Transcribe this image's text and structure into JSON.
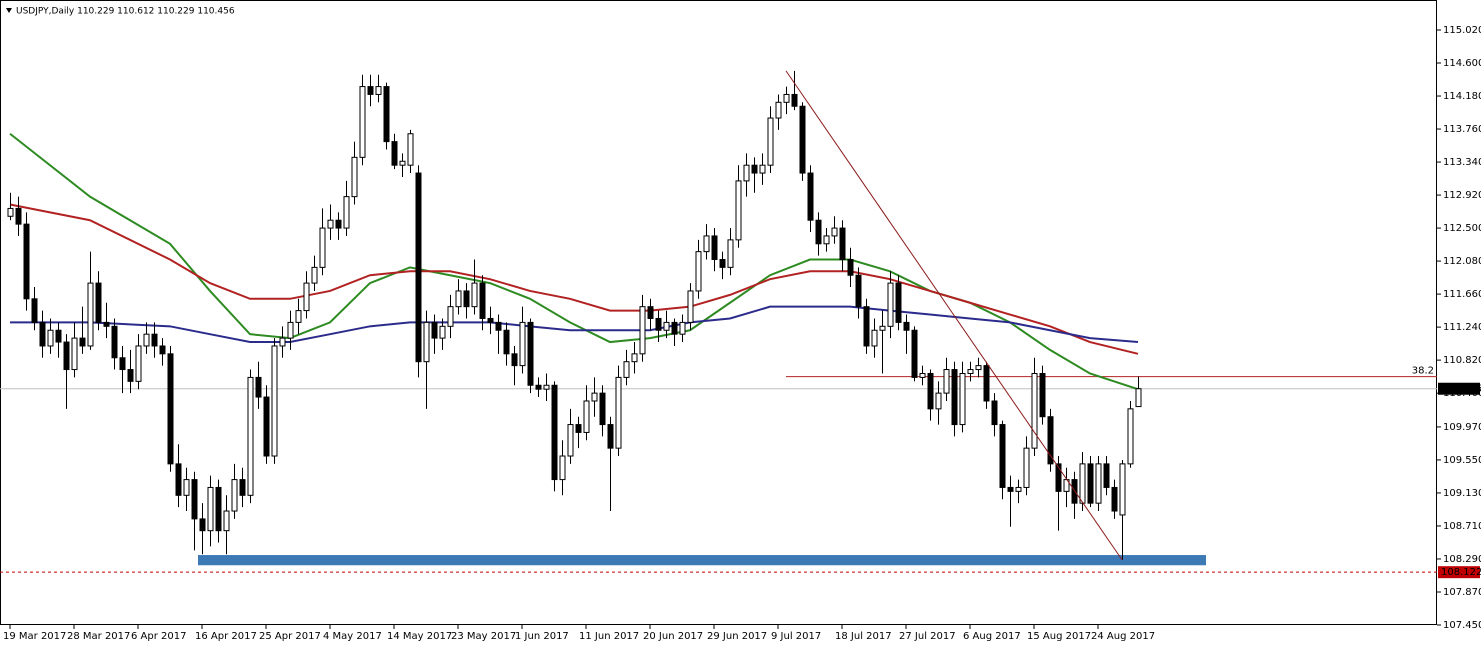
{
  "chart_data": {
    "type": "candlestick",
    "title": "USDJPY,Daily  110.229 110.612 110.229 110.456",
    "categories": [
      "19 Mar 2017",
      null,
      null,
      null,
      null,
      null,
      null,
      null,
      "28 Mar 2017",
      null,
      null,
      null,
      null,
      null,
      null,
      null,
      "6 Apr 2017",
      null,
      null,
      null,
      null,
      null,
      null,
      null,
      "16 Apr 2017",
      null,
      null,
      null,
      null,
      null,
      null,
      null,
      "25 Apr 2017",
      null,
      null,
      null,
      null,
      null,
      null,
      null,
      "4 May 2017",
      null,
      null,
      null,
      null,
      null,
      null,
      null,
      "14 May 2017",
      null,
      null,
      null,
      null,
      null,
      null,
      null,
      "23 May 2017",
      null,
      null,
      null,
      null,
      null,
      null,
      null,
      "1 Jun 2017",
      null,
      null,
      null,
      null,
      null,
      null,
      null,
      "11 Jun 2017",
      null,
      null,
      null,
      null,
      null,
      null,
      null,
      "20 Jun 2017",
      null,
      null,
      null,
      null,
      null,
      null,
      null,
      "29 Jun 2017",
      null,
      null,
      null,
      null,
      null,
      null,
      null,
      "9 Jul 2017",
      null,
      null,
      null,
      null,
      null,
      null,
      null,
      "18 Jul 2017",
      null,
      null,
      null,
      null,
      null,
      null,
      null,
      "27 Jul 2017",
      null,
      null,
      null,
      null,
      null,
      null,
      null,
      "6 Aug 2017",
      null,
      null,
      null,
      null,
      null,
      null,
      null,
      "15 Aug 2017",
      null,
      null,
      null,
      null,
      null,
      null,
      null,
      "24 Aug 2017",
      null,
      null,
      null,
      null,
      null
    ],
    "ohlc": [
      [
        112.65,
        112.95,
        112.6,
        112.75
      ],
      [
        112.75,
        112.9,
        112.4,
        112.55
      ],
      [
        112.55,
        112.7,
        111.45,
        111.6
      ],
      [
        111.6,
        111.75,
        111.2,
        111.3
      ],
      [
        111.3,
        111.45,
        110.85,
        111.0
      ],
      [
        111.0,
        111.35,
        110.9,
        111.2
      ],
      [
        111.2,
        111.3,
        110.85,
        111.05
      ],
      [
        111.05,
        111.15,
        110.2,
        110.7
      ],
      [
        110.7,
        111.3,
        110.6,
        111.1
      ],
      [
        111.1,
        111.5,
        110.9,
        111.0
      ],
      [
        111.0,
        112.2,
        110.95,
        111.8
      ],
      [
        111.8,
        111.95,
        111.2,
        111.3
      ],
      [
        111.3,
        111.55,
        111.1,
        111.25
      ],
      [
        111.25,
        111.35,
        110.7,
        110.85
      ],
      [
        110.85,
        111.0,
        110.4,
        110.7
      ],
      [
        110.7,
        110.95,
        110.4,
        110.55
      ],
      [
        110.55,
        111.15,
        110.45,
        111.0
      ],
      [
        111.0,
        111.3,
        110.9,
        111.15
      ],
      [
        111.15,
        111.3,
        110.85,
        111.0
      ],
      [
        111.0,
        111.1,
        110.75,
        110.9
      ],
      [
        110.9,
        111.0,
        109.4,
        109.5
      ],
      [
        109.5,
        109.75,
        108.95,
        109.1
      ],
      [
        109.1,
        109.45,
        108.9,
        109.3
      ],
      [
        109.3,
        109.4,
        108.4,
        108.8
      ],
      [
        108.8,
        109.0,
        108.35,
        108.65
      ],
      [
        108.65,
        109.35,
        108.45,
        109.2
      ],
      [
        109.2,
        109.3,
        108.5,
        108.65
      ],
      [
        108.65,
        109.1,
        108.35,
        108.9
      ],
      [
        108.9,
        109.5,
        108.8,
        109.3
      ],
      [
        109.3,
        109.45,
        108.95,
        109.1
      ],
      [
        109.1,
        110.7,
        109.0,
        110.6
      ],
      [
        110.6,
        110.8,
        110.2,
        110.35
      ],
      [
        110.35,
        110.5,
        109.5,
        109.6
      ],
      [
        109.6,
        111.1,
        109.5,
        111.0
      ],
      [
        111.0,
        111.25,
        110.85,
        111.1
      ],
      [
        111.1,
        111.45,
        110.95,
        111.3
      ],
      [
        111.3,
        111.6,
        111.15,
        111.45
      ],
      [
        111.45,
        111.95,
        111.35,
        111.8
      ],
      [
        111.8,
        112.15,
        111.7,
        112.0
      ],
      [
        112.0,
        112.75,
        111.9,
        112.5
      ],
      [
        112.5,
        112.8,
        112.35,
        112.6
      ],
      [
        112.6,
        112.7,
        112.35,
        112.5
      ],
      [
        112.5,
        113.1,
        112.4,
        112.9
      ],
      [
        112.9,
        113.6,
        112.8,
        113.4
      ],
      [
        113.4,
        114.45,
        113.3,
        114.3
      ],
      [
        114.3,
        114.45,
        114.05,
        114.2
      ],
      [
        114.2,
        114.45,
        114.1,
        114.3
      ],
      [
        114.3,
        114.35,
        113.5,
        113.6
      ],
      [
        113.6,
        113.7,
        113.25,
        113.3
      ],
      [
        113.3,
        113.45,
        113.15,
        113.35
      ],
      [
        113.3,
        113.75,
        113.2,
        113.7
      ],
      [
        113.2,
        113.3,
        110.6,
        110.8
      ],
      [
        110.8,
        111.45,
        110.2,
        111.3
      ],
      [
        111.3,
        111.4,
        110.9,
        111.1
      ],
      [
        111.1,
        111.35,
        110.95,
        111.25
      ],
      [
        111.25,
        111.65,
        111.1,
        111.5
      ],
      [
        111.5,
        111.85,
        111.4,
        111.7
      ],
      [
        111.7,
        111.8,
        111.35,
        111.5
      ],
      [
        111.5,
        112.1,
        111.4,
        111.8
      ],
      [
        111.8,
        111.9,
        111.2,
        111.35
      ],
      [
        111.35,
        111.5,
        111.15,
        111.3
      ],
      [
        111.3,
        111.4,
        110.9,
        111.2
      ],
      [
        111.2,
        111.3,
        110.75,
        110.9
      ],
      [
        110.9,
        111.0,
        110.5,
        110.75
      ],
      [
        110.75,
        111.5,
        110.65,
        111.3
      ],
      [
        111.3,
        111.35,
        110.4,
        110.5
      ],
      [
        110.5,
        110.6,
        110.35,
        110.45
      ],
      [
        110.45,
        110.65,
        110.3,
        110.5
      ],
      [
        110.5,
        110.55,
        109.15,
        109.3
      ],
      [
        109.3,
        109.8,
        109.1,
        109.6
      ],
      [
        109.6,
        110.2,
        109.5,
        110.0
      ],
      [
        110.0,
        110.1,
        109.7,
        109.9
      ],
      [
        109.9,
        110.5,
        109.8,
        110.3
      ],
      [
        110.3,
        110.6,
        110.1,
        110.4
      ],
      [
        110.4,
        110.5,
        109.85,
        110.0
      ],
      [
        110.0,
        110.1,
        108.9,
        109.7
      ],
      [
        109.7,
        110.75,
        109.6,
        110.6
      ],
      [
        110.6,
        110.95,
        110.5,
        110.8
      ],
      [
        110.8,
        111.05,
        110.65,
        110.9
      ],
      [
        110.9,
        111.65,
        110.8,
        111.5
      ],
      [
        111.5,
        111.6,
        111.2,
        111.35
      ],
      [
        111.35,
        111.45,
        111.05,
        111.2
      ],
      [
        111.2,
        111.45,
        111.1,
        111.3
      ],
      [
        111.3,
        111.35,
        111.0,
        111.15
      ],
      [
        111.15,
        111.4,
        111.05,
        111.3
      ],
      [
        111.3,
        111.8,
        111.2,
        111.7
      ],
      [
        111.7,
        112.35,
        111.6,
        112.2
      ],
      [
        112.2,
        112.55,
        112.1,
        112.4
      ],
      [
        112.4,
        112.5,
        111.95,
        112.1
      ],
      [
        112.1,
        112.2,
        111.85,
        112.0
      ],
      [
        112.0,
        112.5,
        111.9,
        112.35
      ],
      [
        112.35,
        113.3,
        112.25,
        113.1
      ],
      [
        113.1,
        113.45,
        112.9,
        113.3
      ],
      [
        113.3,
        113.4,
        112.95,
        113.2
      ],
      [
        113.2,
        113.45,
        113.05,
        113.3
      ],
      [
        113.3,
        114.05,
        113.2,
        113.9
      ],
      [
        113.9,
        114.2,
        113.75,
        114.1
      ],
      [
        114.1,
        114.3,
        113.95,
        114.2
      ],
      [
        114.2,
        114.5,
        114.0,
        114.05
      ],
      [
        114.05,
        114.1,
        113.1,
        113.2
      ],
      [
        113.2,
        113.3,
        112.45,
        112.6
      ],
      [
        112.6,
        112.7,
        112.15,
        112.3
      ],
      [
        112.3,
        112.5,
        112.2,
        112.4
      ],
      [
        112.4,
        112.65,
        112.3,
        112.5
      ],
      [
        112.5,
        112.6,
        111.95,
        112.1
      ],
      [
        112.1,
        112.25,
        111.75,
        111.9
      ],
      [
        111.9,
        112.0,
        111.35,
        111.5
      ],
      [
        111.5,
        111.6,
        110.9,
        111.0
      ],
      [
        111.0,
        111.35,
        110.85,
        111.2
      ],
      [
        111.2,
        111.45,
        110.65,
        111.25
      ],
      [
        111.25,
        111.95,
        111.1,
        111.8
      ],
      [
        111.8,
        111.9,
        111.2,
        111.3
      ],
      [
        111.3,
        111.4,
        110.9,
        111.2
      ],
      [
        111.2,
        111.25,
        110.55,
        110.6
      ],
      [
        110.6,
        110.75,
        110.5,
        110.65
      ],
      [
        110.65,
        110.7,
        110.05,
        110.2
      ],
      [
        110.2,
        110.55,
        110.0,
        110.4
      ],
      [
        110.4,
        110.85,
        110.3,
        110.7
      ],
      [
        110.7,
        110.8,
        109.85,
        110.0
      ],
      [
        110.0,
        110.8,
        109.9,
        110.65
      ],
      [
        110.65,
        110.8,
        110.55,
        110.7
      ],
      [
        110.7,
        110.85,
        110.6,
        110.75
      ],
      [
        110.75,
        110.8,
        110.2,
        110.3
      ],
      [
        110.3,
        110.4,
        109.85,
        110.0
      ],
      [
        110.0,
        110.05,
        109.05,
        109.2
      ],
      [
        109.2,
        109.35,
        108.7,
        109.15
      ],
      [
        109.15,
        109.3,
        109.0,
        109.2
      ],
      [
        109.2,
        109.85,
        109.1,
        109.7
      ],
      [
        109.7,
        110.85,
        109.6,
        110.65
      ],
      [
        110.65,
        110.75,
        110.0,
        110.1
      ],
      [
        110.1,
        110.2,
        109.4,
        109.5
      ],
      [
        109.5,
        109.6,
        108.65,
        109.15
      ],
      [
        109.15,
        109.45,
        108.95,
        109.3
      ],
      [
        109.3,
        109.4,
        108.8,
        109.0
      ],
      [
        109.0,
        109.65,
        108.9,
        109.5
      ],
      [
        109.5,
        109.6,
        108.95,
        109.0
      ],
      [
        109.0,
        109.6,
        108.9,
        109.5
      ],
      [
        109.5,
        109.6,
        109.1,
        109.2
      ],
      [
        109.2,
        109.3,
        108.8,
        108.9
      ],
      [
        108.85,
        109.55,
        108.28,
        109.5
      ],
      [
        109.5,
        110.3,
        109.45,
        110.2
      ],
      [
        110.229,
        110.612,
        110.229,
        110.456
      ]
    ],
    "overlays": [
      {
        "color": "#2e8b22",
        "x": [
          0,
          10,
          20,
          25,
          30,
          35,
          40,
          45,
          50,
          55,
          60,
          65,
          70,
          75,
          80,
          85,
          90,
          95,
          100,
          105,
          110,
          115,
          120,
          125,
          130,
          135,
          141
        ],
        "values": [
          113.7,
          112.9,
          112.3,
          111.7,
          111.15,
          111.1,
          111.3,
          111.8,
          112.0,
          111.9,
          111.8,
          111.6,
          111.3,
          111.05,
          111.1,
          111.2,
          111.55,
          111.9,
          112.1,
          112.1,
          111.95,
          111.7,
          111.55,
          111.3,
          110.95,
          110.65,
          110.45
        ]
      },
      {
        "color": "#b22222",
        "x": [
          0,
          10,
          20,
          25,
          30,
          35,
          40,
          45,
          50,
          55,
          60,
          65,
          70,
          75,
          80,
          85,
          90,
          95,
          100,
          105,
          110,
          115,
          120,
          125,
          130,
          135,
          141
        ],
        "values": [
          112.8,
          112.6,
          112.1,
          111.8,
          111.6,
          111.6,
          111.7,
          111.9,
          111.95,
          111.95,
          111.85,
          111.7,
          111.6,
          111.45,
          111.45,
          111.5,
          111.65,
          111.85,
          111.95,
          111.95,
          111.85,
          111.7,
          111.55,
          111.4,
          111.25,
          111.05,
          110.9
        ]
      },
      {
        "color": "#2b2b8c",
        "x": [
          0,
          10,
          20,
          25,
          30,
          35,
          40,
          45,
          50,
          55,
          60,
          65,
          70,
          75,
          80,
          85,
          90,
          95,
          100,
          105,
          110,
          115,
          120,
          125,
          130,
          135,
          141
        ],
        "values": [
          111.3,
          111.3,
          111.25,
          111.15,
          111.05,
          111.05,
          111.15,
          111.25,
          111.3,
          111.3,
          111.3,
          111.25,
          111.2,
          111.2,
          111.2,
          111.3,
          111.35,
          111.5,
          111.5,
          111.5,
          111.45,
          111.4,
          111.35,
          111.3,
          111.2,
          111.1,
          111.05
        ]
      }
    ],
    "trendline": {
      "color": "#8b1a1a",
      "x": [
        97,
        139
      ],
      "values": [
        114.5,
        108.28
      ]
    },
    "fib_level": {
      "label": "38.2",
      "value": 110.61,
      "x": 97,
      "color": "#b22222"
    },
    "zone": {
      "color": "#3d7ab5",
      "x": [
        24,
        150
      ],
      "ylim": [
        108.21,
        108.34
      ]
    },
    "price_line": {
      "value": 110.456,
      "color": "#c0c0c0"
    },
    "support_line": {
      "value": 108.122,
      "color": "#c00000"
    },
    "ylim": [
      107.45,
      115.27
    ],
    "yticks": [
      {
        "value": 115.02,
        "label": "115.020"
      },
      {
        "value": 114.6,
        "label": "114.600"
      },
      {
        "value": 114.18,
        "label": "114.180"
      },
      {
        "value": 113.76,
        "label": "113.760"
      },
      {
        "value": 113.34,
        "label": "113.340"
      },
      {
        "value": 112.92,
        "label": "112.920"
      },
      {
        "value": 112.5,
        "label": "112.500"
      },
      {
        "value": 112.08,
        "label": "112.080"
      },
      {
        "value": 111.66,
        "label": "111.660"
      },
      {
        "value": 111.24,
        "label": "111.240"
      },
      {
        "value": 110.82,
        "label": "110.820"
      },
      {
        "value": 110.4,
        "label": "110.400"
      },
      {
        "value": 109.97,
        "label": "109.970"
      },
      {
        "value": 109.55,
        "label": "109.550"
      },
      {
        "value": 109.13,
        "label": "109.130"
      },
      {
        "value": 108.71,
        "label": "108.710"
      },
      {
        "value": 108.29,
        "label": "108.290"
      },
      {
        "value": 107.87,
        "label": "107.870"
      },
      {
        "value": 107.45,
        "label": "107.450"
      }
    ]
  }
}
